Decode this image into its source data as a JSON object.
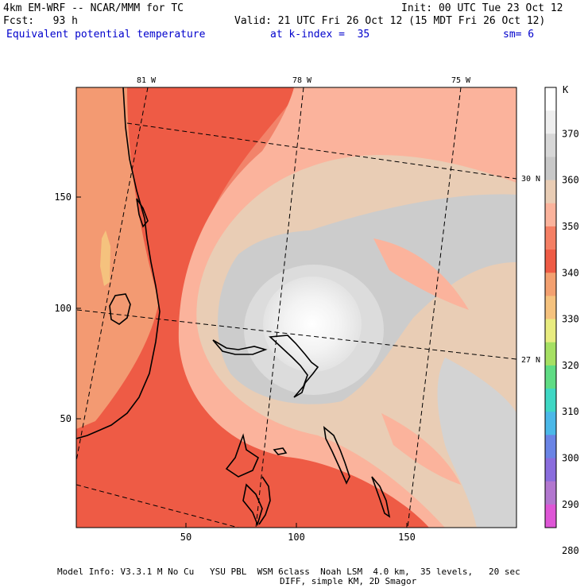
{
  "header": {
    "model": "4km EM-WRF -- NCAR/MMM for TC",
    "init": "Init: 00 UTC Tue 23 Oct 12",
    "fcst": "Fcst:   93 h",
    "valid": "Valid: 21 UTC Fri 26 Oct 12 (15 MDT Fri 26 Oct 12)",
    "field": "Equivalent potential temperature",
    "level": "at k-index =  35",
    "smoothing": "sm= 6"
  },
  "map": {
    "top_lon_labels": [
      "81 W",
      "78 W",
      "75 W"
    ],
    "right_lat_labels": [
      "30 N",
      "27 N"
    ],
    "left_y_ticks": [
      "150",
      "100",
      "50"
    ],
    "bottom_x_ticks": [
      "50",
      "100",
      "150"
    ]
  },
  "colorbar": {
    "unit": "K",
    "labels": [
      "370",
      "360",
      "350",
      "340",
      "330",
      "320",
      "310",
      "300",
      "290",
      "280"
    ],
    "colors": [
      "#ffffff",
      "#eeeeee",
      "#d7d7d7",
      "#c8c8c8",
      "#e9cdb5",
      "#fbb39c",
      "#f57f64",
      "#ee5b45",
      "#f3a070",
      "#f5c27e",
      "#e8ec80",
      "#a6e063",
      "#5fdc84",
      "#3fd7c4",
      "#4bb8e8",
      "#6a84e5",
      "#8a6ddd",
      "#b277cf",
      "#de56d6"
    ]
  },
  "footer": {
    "line1": "Model Info: V3.3.1 M No Cu   YSU PBL  WSM 6class  Noah LSM  4.0 km,  35 levels,   20 sec",
    "line2": "DIFF, simple KM, 2D Smagor"
  }
}
